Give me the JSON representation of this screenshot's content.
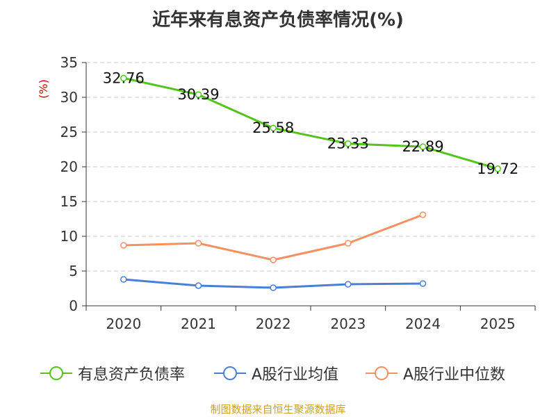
{
  "chart_data": {
    "type": "line",
    "title": "近年来有息资产负债率情况(%)",
    "ylabel": "(%)",
    "xlabel": "",
    "categories": [
      "2020",
      "2021",
      "2022",
      "2023",
      "2024",
      "2025"
    ],
    "ylim": [
      0,
      35
    ],
    "yticks": [
      0,
      5,
      10,
      15,
      20,
      25,
      30,
      35
    ],
    "grid": true,
    "legend_position": "bottom",
    "series": [
      {
        "name": "有息资产负债率",
        "color": "#52c41a",
        "values": [
          32.76,
          30.39,
          25.58,
          23.33,
          22.89,
          19.72
        ],
        "labels": [
          "32.76",
          "30.39",
          "25.58",
          "23.33",
          "22.89",
          "19.72"
        ]
      },
      {
        "name": "A股行业均值",
        "color": "#4a7fd8",
        "values": [
          3.8,
          2.9,
          2.6,
          3.1,
          3.2,
          null
        ]
      },
      {
        "name": "A股行业中位数",
        "color": "#f59062",
        "values": [
          8.7,
          9.0,
          6.6,
          9.0,
          13.1,
          null
        ]
      }
    ]
  },
  "source": "制图数据来自恒生聚源数据库"
}
